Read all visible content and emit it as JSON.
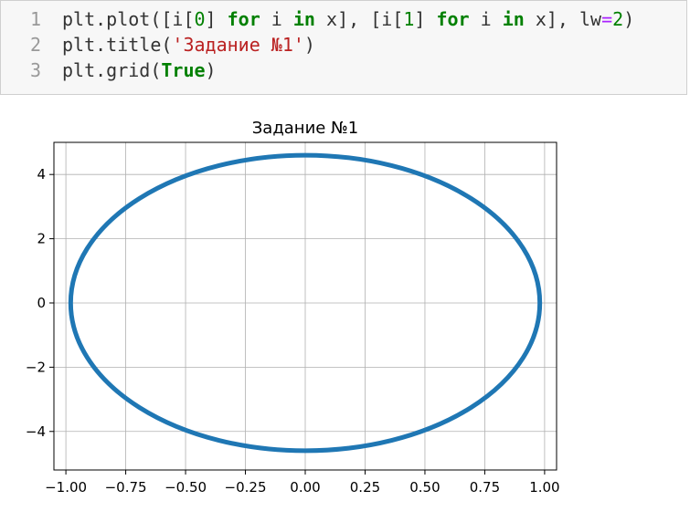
{
  "code_cell": {
    "line_numbers": [
      "1",
      "2",
      "3"
    ],
    "lines": [
      [
        {
          "t": "plt.plot([i[",
          "c": "plain"
        },
        {
          "t": "0",
          "c": "num"
        },
        {
          "t": "] ",
          "c": "plain"
        },
        {
          "t": "for",
          "c": "kw"
        },
        {
          "t": " i ",
          "c": "plain"
        },
        {
          "t": "in",
          "c": "kw"
        },
        {
          "t": " x], [i[",
          "c": "plain"
        },
        {
          "t": "1",
          "c": "num"
        },
        {
          "t": "] ",
          "c": "plain"
        },
        {
          "t": "for",
          "c": "kw"
        },
        {
          "t": " i ",
          "c": "plain"
        },
        {
          "t": "in",
          "c": "kw"
        },
        {
          "t": " x], lw",
          "c": "plain"
        },
        {
          "t": "=",
          "c": "op"
        },
        {
          "t": "2",
          "c": "num"
        },
        {
          "t": ")",
          "c": "plain"
        }
      ],
      [
        {
          "t": "plt.title(",
          "c": "plain"
        },
        {
          "t": "'Задание №1'",
          "c": "str"
        },
        {
          "t": ")",
          "c": "plain"
        }
      ],
      [
        {
          "t": "plt.grid(",
          "c": "plain"
        },
        {
          "t": "True",
          "c": "kw"
        },
        {
          "t": ")",
          "c": "plain"
        }
      ]
    ]
  },
  "chart_data": {
    "type": "line",
    "title": "Задание №1",
    "xlabel": "",
    "ylabel": "",
    "xlim": [
      -1.05,
      1.05
    ],
    "ylim": [
      -5.2,
      5.0
    ],
    "x_ticks": [
      -1.0,
      -0.75,
      -0.5,
      -0.25,
      0.0,
      0.25,
      0.5,
      0.75,
      1.0
    ],
    "x_tick_labels": [
      "−1.00",
      "−0.75",
      "−0.50",
      "−0.25",
      "0.00",
      "0.25",
      "0.50",
      "0.75",
      "1.00"
    ],
    "y_ticks": [
      -4,
      -2,
      0,
      2,
      4
    ],
    "y_tick_labels": [
      "−4",
      "−2",
      "0",
      "2",
      "4"
    ],
    "grid": true,
    "line_color": "#1f77b4",
    "line_width": 2,
    "series": [
      {
        "shape": "ellipse",
        "x_center": 0.0,
        "y_center": 0.0,
        "x_radius": 0.98,
        "y_radius": 4.6,
        "x_min": -0.98,
        "x_max": 0.98,
        "y_min": -4.6,
        "y_max": 4.6
      }
    ]
  }
}
